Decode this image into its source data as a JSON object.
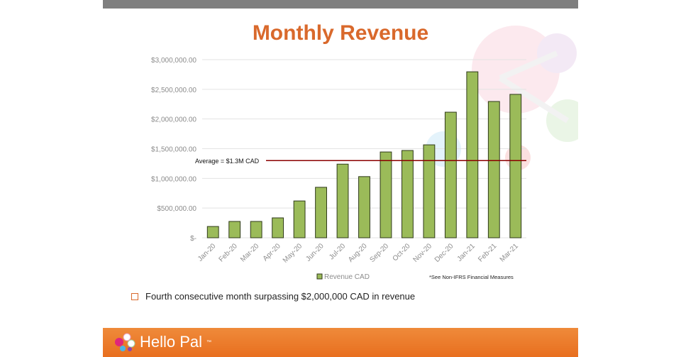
{
  "chart_data": {
    "type": "bar",
    "title": "Monthly Revenue",
    "categories": [
      "Jan-20",
      "Feb-20",
      "Mar-20",
      "Apr-20",
      "May-20",
      "Jun-20",
      "Jul-20",
      "Aug-20",
      "Sep-20",
      "Oct-20",
      "Nov-20",
      "Dec-20",
      "Jan-21",
      "Feb-21",
      "Mar-21"
    ],
    "series": [
      {
        "name": "Revenue CAD",
        "values": [
          190000,
          275000,
          275000,
          335000,
          620000,
          850000,
          1240000,
          1030000,
          1445000,
          1470000,
          1565000,
          2115000,
          2795000,
          2295000,
          2415000
        ]
      }
    ],
    "ylim": [
      0,
      3000000
    ],
    "yticks": [
      0,
      500000,
      1000000,
      1500000,
      2000000,
      2500000,
      3000000
    ],
    "ytick_labels": [
      "$-",
      "$500,000.00",
      "$1,000,000.00",
      "$1,500,000.00",
      "$2,000,000.00",
      "$2,500,000.00",
      "$3,000,000.00"
    ],
    "average": {
      "value": 1300000,
      "label": "Average = $1.3M  CAD",
      "color": "#8b0000"
    },
    "grid": true,
    "legend": "bottom",
    "bar_color": "#9bbb59",
    "bar_edge": "#2f3a1a",
    "footnote": "*See Non-IFRS Financial Measures"
  },
  "bullet": "Fourth consecutive month surpassing $2,000,000 CAD in revenue",
  "brand": {
    "name": "Hello Pal",
    "tm": "™",
    "color": "#e8762b"
  }
}
